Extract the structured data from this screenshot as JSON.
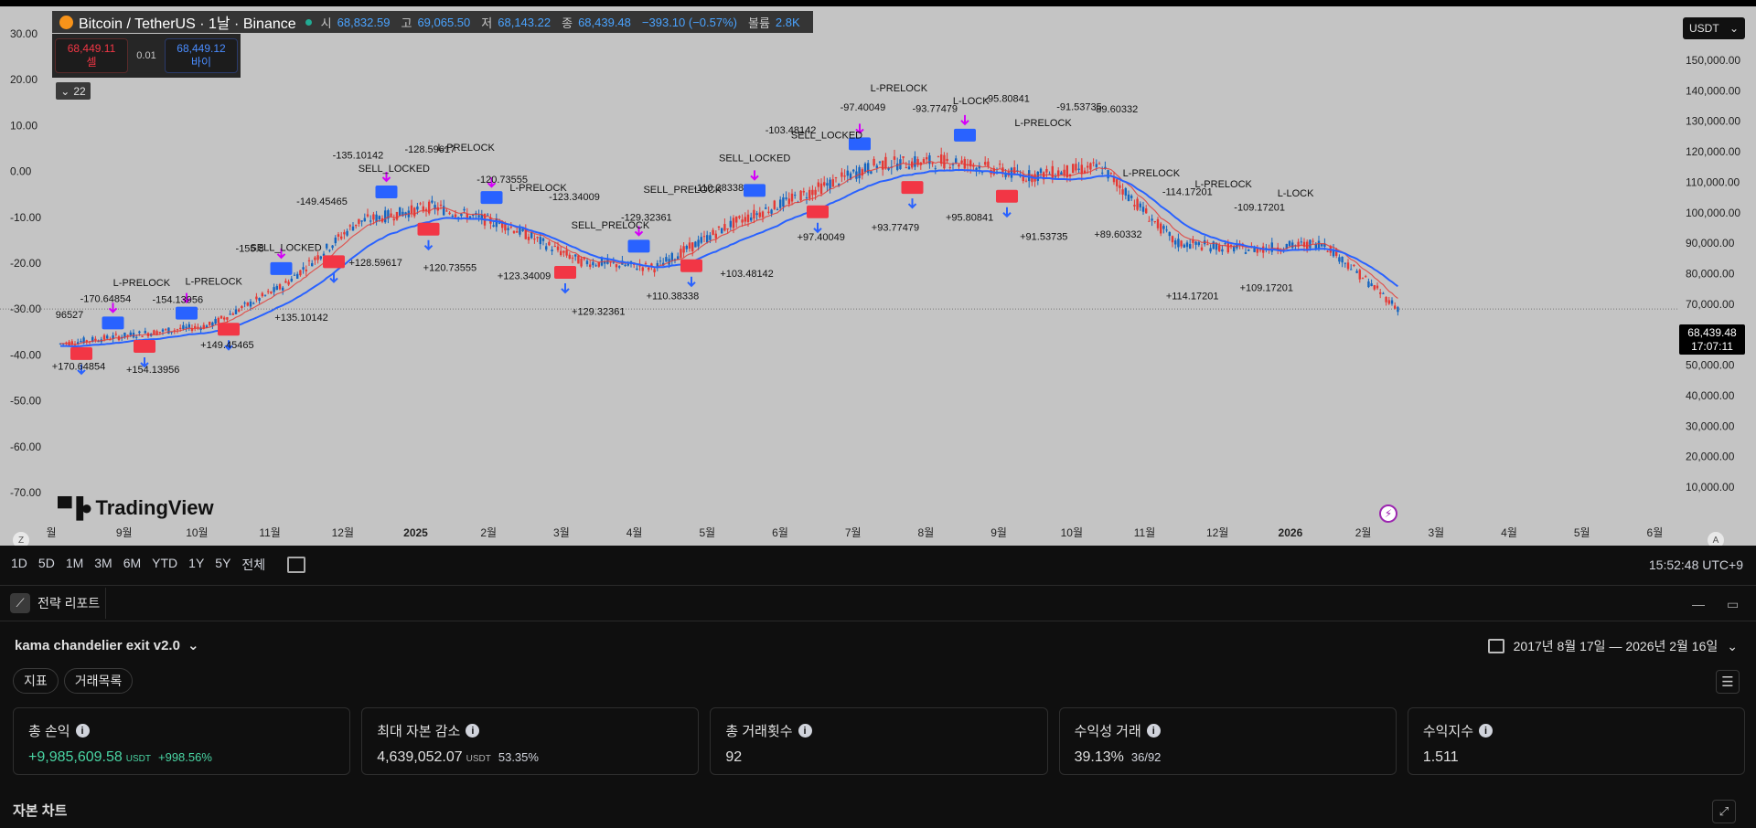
{
  "symbol": {
    "name": "Bitcoin / TetherUS · 1날 · Binance",
    "open_label": "시",
    "open": "68,832.59",
    "high_label": "고",
    "high": "69,065.50",
    "low_label": "저",
    "low": "68,143.22",
    "close_label": "종",
    "close": "68,439.48",
    "change": "−393.10 (−0.57%)",
    "volume_label": "볼륨",
    "volume": "2.8K"
  },
  "trade": {
    "sell_price": "68,449.11",
    "sell_label": "셀",
    "step": "0.01",
    "buy_price": "68,449.12",
    "buy_label": "바이"
  },
  "indicator_count": "22",
  "currency_select": "USDT",
  "last_price": {
    "price": "68,439.48",
    "countdown": "17:07:11"
  },
  "left_axis": [
    "30.00",
    "20.00",
    "10.00",
    "0.00",
    "-10.00",
    "-20.00",
    "-30.00",
    "-40.00",
    "-50.00",
    "-60.00",
    "-70.00"
  ],
  "right_axis": [
    "150,000.00",
    "140,000.00",
    "130,000.00",
    "120,000.00",
    "110,000.00",
    "100,000.00",
    "90,000.00",
    "80,000.00",
    "70,000.00",
    "60,000.00",
    "50,000.00",
    "40,000.00",
    "30,000.00",
    "20,000.00",
    "10,000.00"
  ],
  "x_axis": [
    "월",
    "9월",
    "10월",
    "11월",
    "12월",
    "2025",
    "2월",
    "3월",
    "4월",
    "5월",
    "6월",
    "7월",
    "8월",
    "9월",
    "10월",
    "11월",
    "12월",
    "2026",
    "2월",
    "3월",
    "4월",
    "5월",
    "6월"
  ],
  "tv_brand": "TradingView",
  "z_label": "Z",
  "a_label": "A",
  "chart_data": {
    "type": "candlestick",
    "y_right_range": [
      10000,
      150000
    ],
    "y_left_range": [
      -70,
      30
    ],
    "price_path": [
      [
        "2024-08",
        57000
      ],
      [
        "2024-09",
        60000
      ],
      [
        "2024-10",
        63000
      ],
      [
        "2024-11",
        76000
      ],
      [
        "2024-12",
        97000
      ],
      [
        "2025-01",
        102000
      ],
      [
        "2025-02",
        96000
      ],
      [
        "2025-03",
        84000
      ],
      [
        "2025-04",
        82000
      ],
      [
        "2025-05",
        96000
      ],
      [
        "2025-06",
        106000
      ],
      [
        "2025-07",
        116000
      ],
      [
        "2025-08",
        117000
      ],
      [
        "2025-09",
        112000
      ],
      [
        "2025-10",
        115000
      ],
      [
        "2025-11",
        90000
      ],
      [
        "2025-12",
        88000
      ],
      [
        "2026-01",
        90000
      ],
      [
        "2026-02",
        68439
      ]
    ],
    "annotations": [
      "96527",
      "-170.64854",
      "L-PRELOCK",
      "-154.13956",
      "L-PRELOCK",
      "-155.8",
      "SELL_LOCKED",
      "-149.45465",
      "-135.10142",
      "SELL_LOCKED",
      "-128.59617",
      "L-PRELOCK",
      "-120.73555",
      "L-PRELOCK",
      "-123.34009",
      "SELL_PRELOCK",
      "-129.32361",
      "SELL_PRELOCK",
      "-110.38338",
      "SELL_LOCKED",
      "-103.48142",
      "SELL_LOCKED",
      "-97.40049",
      "L-PRELOCK",
      "-93.77479",
      "L-LOCK",
      "-95.80841",
      "L-PRELOCK",
      "-91.53735",
      "-89.60332",
      "L-PRELOCK",
      "-114.17201",
      "L-PRELOCK",
      "-109.17201",
      "L-LOCK",
      "+170.64854",
      "+154.13956",
      "+149.45465",
      "+135.10142",
      "+128.59617",
      "+120.73555",
      "+123.34009",
      "+129.32361",
      "+110.38338",
      "+103.48142",
      "+97.40049",
      "+93.77479",
      "+95.80841",
      "+91.53735",
      "+89.60332",
      "+114.17201",
      "+109.17201"
    ]
  },
  "timeframes": [
    "1D",
    "5D",
    "1M",
    "3M",
    "6M",
    "YTD",
    "1Y",
    "5Y",
    "전체"
  ],
  "clock": "15:52:48 UTC+9",
  "report_tab": "전략 리포트",
  "strategy_name": "kama chandelier exit v2.0",
  "date_range": "2017년 8월 17일 — 2026년 2월 16일",
  "subtabs": [
    "지표",
    "거래목록"
  ],
  "cards": [
    {
      "title": "총 손익",
      "value": "+9,985,609.58",
      "unit": "USDT",
      "pct": "+998.56%"
    },
    {
      "title": "최대 자본 감소",
      "value": "4,639,052.07",
      "unit": "USDT",
      "pct": "53.35%"
    },
    {
      "title": "총 거래횟수",
      "value": "92",
      "unit": "",
      "pct": ""
    },
    {
      "title": "수익성 거래",
      "value": "39.13%",
      "unit": "",
      "pct": "36/92"
    },
    {
      "title": "수익지수",
      "value": "1.511",
      "unit": "",
      "pct": ""
    }
  ],
  "equity_title": "자본 차트",
  "colors": {
    "up": "#1565c0",
    "down": "#e53935",
    "kama": "#2962ff",
    "trail": "#e53935",
    "buy_tag": "#f23645",
    "sell_tag": "#2962ff",
    "arrow": "#d500f9"
  }
}
